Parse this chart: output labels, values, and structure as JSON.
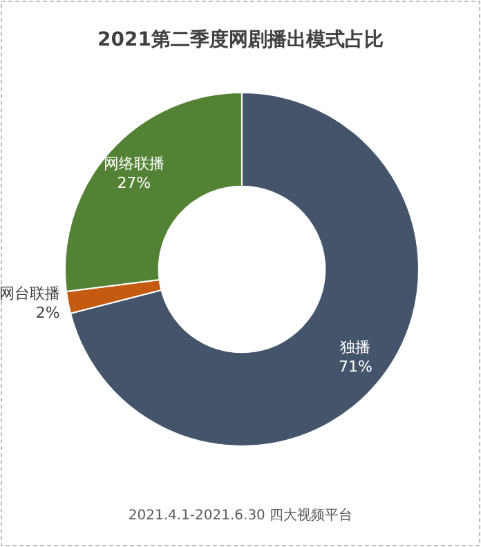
{
  "chart_data": {
    "type": "donut",
    "title": "2021第二季度网剧播出模式占比",
    "categories": [
      "独播",
      "网台联播",
      "网络联播"
    ],
    "values": [
      71,
      2,
      27
    ],
    "colors": [
      "#44546a",
      "#c55a11",
      "#548235"
    ],
    "value_labels": [
      "71%",
      "2%",
      "27%"
    ],
    "annotations": [
      "2021.4.1-2021.6.30 四大视频平台"
    ]
  }
}
